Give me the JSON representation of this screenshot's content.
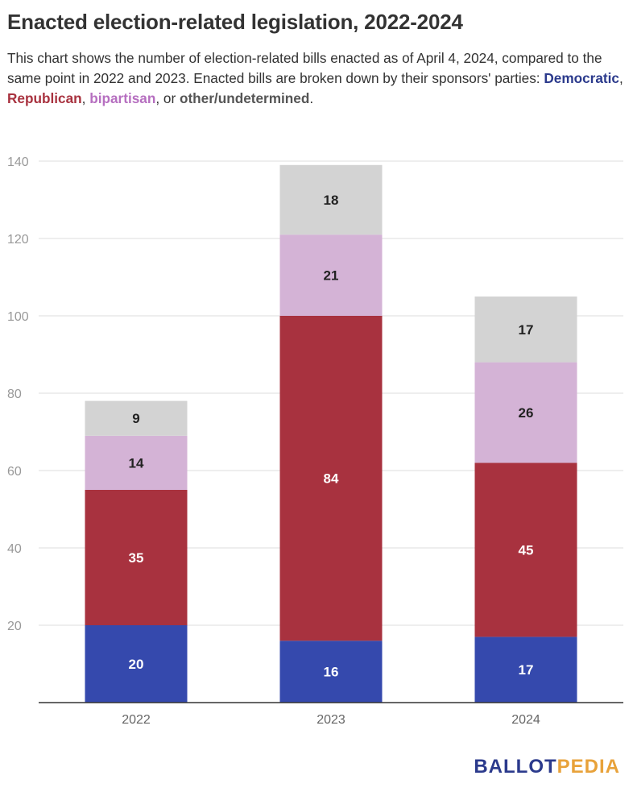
{
  "title": "Enacted election-related legislation, 2022-2024",
  "subtitle": {
    "text_before": "This chart shows the number of election-related bills enacted as of April 4, 2024, compared to the same point in 2022 and 2023. Enacted bills are broken down by their sponsors' parties: ",
    "dem": "Democratic",
    "sep1": ", ",
    "rep": "Republican",
    "sep2": ", ",
    "bip": "bipartisan",
    "sep3": ", or ",
    "oth": "other/undetermined",
    "text_after": "."
  },
  "colors": {
    "dem": "#3549ad",
    "rep": "#a8323f",
    "bip": "#d4b3d6",
    "oth": "#d3d3d3",
    "dem_text": "#2b3a8c",
    "rep_text": "#a8323f",
    "bip_text": "#b66fc0",
    "oth_text": "#555555"
  },
  "logo": {
    "part1": "BALLOT",
    "part2": "PEDIA"
  },
  "chart_data": {
    "type": "bar",
    "stacked": true,
    "categories": [
      "2022",
      "2023",
      "2024"
    ],
    "series": [
      {
        "name": "Democratic",
        "values": [
          20,
          16,
          17
        ]
      },
      {
        "name": "Republican",
        "values": [
          35,
          84,
          45
        ]
      },
      {
        "name": "bipartisan",
        "values": [
          14,
          21,
          26
        ]
      },
      {
        "name": "other/undetermined",
        "values": [
          9,
          18,
          17
        ]
      }
    ],
    "ylim": [
      0,
      140
    ],
    "yticks": [
      20,
      40,
      60,
      80,
      100,
      120,
      140
    ],
    "grid": true
  }
}
